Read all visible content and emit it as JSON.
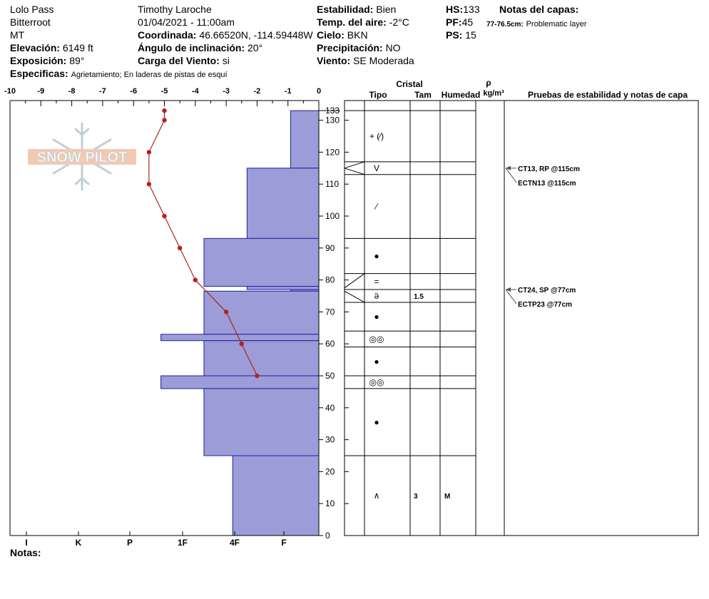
{
  "header": {
    "location": "Lolo Pass",
    "range": "Bitterroot",
    "state": "MT",
    "elevation_label": "Elevación:",
    "elevation_value": "6149 ft",
    "aspect_label": "Exposición:",
    "aspect_value": "89°",
    "specifics_label": "Especificas:",
    "specifics_value": "Agrietamiento;  En laderas de pistas de esquí",
    "observer": "Timothy  Laroche",
    "datetime": "01/04/2021 - 11:00am",
    "coord_label": "Coordinada:",
    "coord_value": "46.66520N, -114.59448W",
    "slope_label": "Ángulo de inclinación:",
    "slope_value": "20°",
    "wind_load_label": "Carga del Viento:",
    "wind_load_value": "si",
    "stability_label": "Estabilidad:",
    "stability_value": "Bien",
    "air_temp_label": "Temp. del aire:",
    "air_temp_value": "-2°C",
    "sky_label": "Cielo:",
    "sky_value": "BKN",
    "precip_label": "Precipitación:",
    "precip_value": "NO",
    "wind_label": "Viento:",
    "wind_value": "SE Moderada",
    "hs_label": "HS:",
    "hs_value": "133",
    "pf_label": "PF:",
    "pf_value": "45",
    "ps_label": "PS:",
    "ps_value": "15",
    "layer_notes_label": "Notas del capas:",
    "layer_note_range": "77-76.5cm:",
    "layer_note_text": "Problematic layer"
  },
  "logo": {
    "text": "SNOW PILOT"
  },
  "notes_label": "Notas:",
  "colors": {
    "hardness_fill": "#9c9cd8",
    "hardness_stroke": "#2020a0",
    "temp_line": "#b22222"
  },
  "chart_data": {
    "type": "snow_profile",
    "temp_axis": {
      "ticks": [
        -10,
        -9,
        -8,
        -7,
        -6,
        -5,
        -4,
        -3,
        -2,
        -1,
        0
      ],
      "range": [
        -10,
        0
      ]
    },
    "height_axis": {
      "ticks": [
        0,
        10,
        20,
        30,
        40,
        50,
        60,
        70,
        80,
        90,
        100,
        110,
        120,
        130
      ],
      "top_label": 133,
      "range": [
        0,
        133
      ]
    },
    "hardness_axis": {
      "labels": [
        "I",
        "K",
        "P",
        "1F",
        "4F",
        "F"
      ]
    },
    "temperature_profile": [
      {
        "h": 133,
        "t": -5.0
      },
      {
        "h": 130,
        "t": -5.0
      },
      {
        "h": 120,
        "t": -5.5
      },
      {
        "h": 110,
        "t": -5.5
      },
      {
        "h": 100,
        "t": -5.0
      },
      {
        "h": 90,
        "t": -4.5
      },
      {
        "h": 80,
        "t": -4.0
      },
      {
        "h": 70,
        "t": -3.0
      },
      {
        "h": 60,
        "t": -2.5
      },
      {
        "h": 50,
        "t": -2.0
      }
    ],
    "hardness_layers": [
      {
        "top": 133,
        "bottom": 115,
        "w": 1.08
      },
      {
        "top": 115,
        "bottom": 93,
        "w": 2.75
      },
      {
        "top": 93,
        "bottom": 78,
        "w": 4.4
      },
      {
        "top": 78,
        "bottom": 77,
        "w": 2.75
      },
      {
        "top": 77,
        "bottom": 76.5,
        "w": 1.08
      },
      {
        "top": 76.5,
        "bottom": 63,
        "w": 4.4
      },
      {
        "top": 63,
        "bottom": 61,
        "w": 6.05
      },
      {
        "top": 61,
        "bottom": 50,
        "w": 4.4
      },
      {
        "top": 50,
        "bottom": 46,
        "w": 6.05
      },
      {
        "top": 46,
        "bottom": 25,
        "w": 4.4
      },
      {
        "top": 25,
        "bottom": 0,
        "w": 3.3
      }
    ],
    "columns": {
      "crystal": "Cristal",
      "type": "Tipo",
      "size": "Tam",
      "moisture": "Humedad",
      "density_symbol": "ρ",
      "density_unit": "kg/m³",
      "tests": "Pruebas de estabilidad y notas de capa"
    },
    "layers": [
      {
        "top": 133,
        "bottom": 117,
        "type": "+ (⁄)",
        "size": "",
        "moisture": ""
      },
      {
        "top": 117,
        "bottom": 113,
        "type": "V",
        "size": "",
        "moisture": ""
      },
      {
        "top": 113,
        "bottom": 93,
        "type": "⁄",
        "size": "",
        "moisture": ""
      },
      {
        "top": 93,
        "bottom": 82,
        "type": "●",
        "size": "",
        "moisture": ""
      },
      {
        "top": 82,
        "bottom": 77,
        "type": "=",
        "size": "",
        "moisture": ""
      },
      {
        "top": 77,
        "bottom": 73,
        "type": "ӛ",
        "size": "1.5",
        "moisture": ""
      },
      {
        "top": 73,
        "bottom": 64,
        "type": "●",
        "size": "",
        "moisture": ""
      },
      {
        "top": 64,
        "bottom": 59,
        "type": "◎◎",
        "size": "",
        "moisture": ""
      },
      {
        "top": 59,
        "bottom": 50,
        "type": "●",
        "size": "",
        "moisture": ""
      },
      {
        "top": 50,
        "bottom": 46,
        "type": "◎◎",
        "size": "",
        "moisture": ""
      },
      {
        "top": 46,
        "bottom": 25,
        "type": "●",
        "size": "",
        "moisture": ""
      },
      {
        "top": 25,
        "bottom": 0,
        "type": "∧",
        "size": "3",
        "moisture": "M"
      }
    ],
    "tests": [
      {
        "h": 115,
        "text": "CT13, RP @115cm"
      },
      {
        "h": 115,
        "text": "ECTN13 @115cm"
      },
      {
        "h": 77,
        "text": "CT24, SP @77cm"
      },
      {
        "h": 77,
        "text": "ECTP23 @77cm"
      }
    ]
  }
}
